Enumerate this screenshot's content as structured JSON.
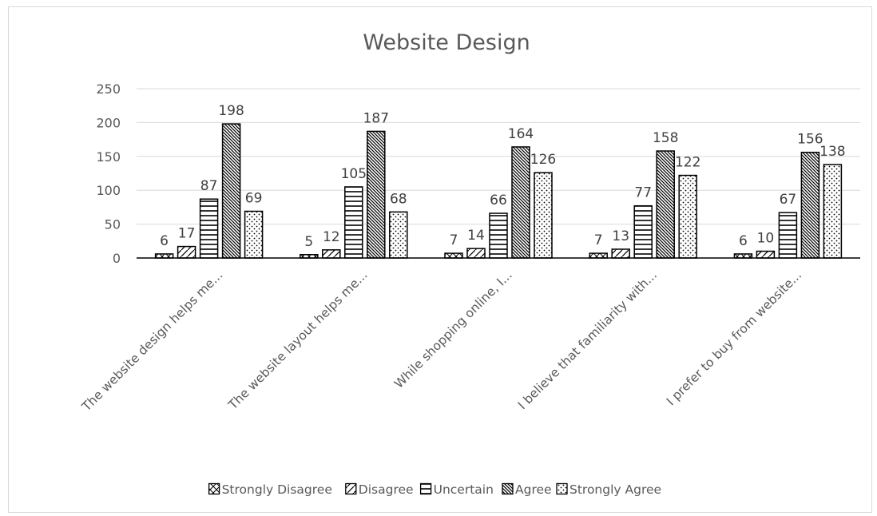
{
  "chart_data": {
    "type": "bar",
    "title": "Website Design",
    "categories": [
      "The website design helps me...",
      "The website layout helps me...",
      "While shopping online, I...",
      "I believe that familiarity with...",
      "I prefer to buy from website..."
    ],
    "series": [
      {
        "name": "Strongly Disagree",
        "values": [
          6,
          5,
          7,
          7,
          6
        ],
        "pattern": "x-box"
      },
      {
        "name": "Disagree",
        "values": [
          17,
          12,
          14,
          13,
          10
        ],
        "pattern": "diag-up"
      },
      {
        "name": "Uncertain",
        "values": [
          87,
          105,
          66,
          77,
          67
        ],
        "pattern": "horizontal"
      },
      {
        "name": "Agree",
        "values": [
          198,
          187,
          164,
          158,
          156
        ],
        "pattern": "diag-down-dense"
      },
      {
        "name": "Strongly Agree",
        "values": [
          69,
          68,
          126,
          122,
          138
        ],
        "pattern": "dots"
      }
    ],
    "yticks": [
      0,
      50,
      100,
      150,
      200,
      250
    ],
    "ylim": [
      0,
      250
    ],
    "grid": true,
    "legend_position": "bottom"
  }
}
